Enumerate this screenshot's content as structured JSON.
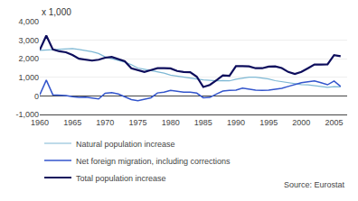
{
  "chart_data": {
    "type": "line",
    "ylabel": "x 1,000",
    "source": "Source: Eurostat",
    "x": [
      1960,
      1961,
      1962,
      1963,
      1964,
      1965,
      1966,
      1967,
      1968,
      1969,
      1970,
      1971,
      1972,
      1973,
      1974,
      1975,
      1976,
      1977,
      1978,
      1979,
      1980,
      1981,
      1982,
      1983,
      1984,
      1985,
      1986,
      1987,
      1988,
      1989,
      1990,
      1991,
      1992,
      1993,
      1994,
      1995,
      1996,
      1997,
      1998,
      1999,
      2000,
      2001,
      2002,
      2003,
      2004,
      2005,
      2006
    ],
    "series": [
      {
        "name": "Natural population increase",
        "color": "#7eb8d4",
        "values": [
          2450,
          2470,
          2490,
          2510,
          2530,
          2550,
          2500,
          2450,
          2380,
          2280,
          2100,
          2000,
          1920,
          1820,
          1680,
          1500,
          1430,
          1370,
          1310,
          1230,
          1120,
          1060,
          1010,
          960,
          910,
          860,
          820,
          810,
          830,
          810,
          900,
          960,
          1010,
          1010,
          960,
          910,
          820,
          760,
          710,
          660,
          610,
          600,
          560,
          510,
          460,
          500,
          490
        ]
      },
      {
        "name": "Net foreign migration, including corrections",
        "color": "#3355cc",
        "values": [
          60,
          850,
          60,
          40,
          20,
          -40,
          -80,
          -70,
          -100,
          -160,
          140,
          180,
          100,
          -50,
          -200,
          -260,
          -180,
          -100,
          160,
          200,
          300,
          250,
          200,
          200,
          150,
          -100,
          -80,
          100,
          260,
          300,
          310,
          420,
          360,
          310,
          300,
          310,
          360,
          410,
          510,
          610,
          710,
          760,
          810,
          710,
          600,
          800,
          510
        ]
      },
      {
        "name": "Total population increase",
        "color": "#0d0d5c",
        "values": [
          2480,
          3250,
          2500,
          2400,
          2350,
          2200,
          2000,
          1940,
          1900,
          1950,
          2060,
          2100,
          2000,
          1870,
          1490,
          1380,
          1290,
          1390,
          1490,
          1490,
          1480,
          1340,
          1290,
          1280,
          1040,
          480,
          590,
          840,
          1100,
          1080,
          1600,
          1600,
          1590,
          1490,
          1490,
          1580,
          1590,
          1500,
          1290,
          1180,
          1290,
          1490,
          1690,
          1690,
          1700,
          2200,
          2140
        ]
      }
    ],
    "xlim": [
      1960,
      2007
    ],
    "xticks": [
      1960,
      1965,
      1970,
      1975,
      1980,
      1985,
      1990,
      1995,
      2000,
      2005
    ],
    "ylim": [
      -1000,
      4000
    ],
    "yticks": [
      {
        "value": -1000,
        "label": "-1,000"
      },
      0,
      {
        "value": 1000,
        "label": "1,000"
      },
      {
        "value": 2000,
        "label": "2,000"
      },
      {
        "value": 3000,
        "label": "3,000"
      },
      {
        "value": 4000,
        "label": "4,000"
      }
    ],
    "grid": true,
    "legend": "lower left"
  }
}
